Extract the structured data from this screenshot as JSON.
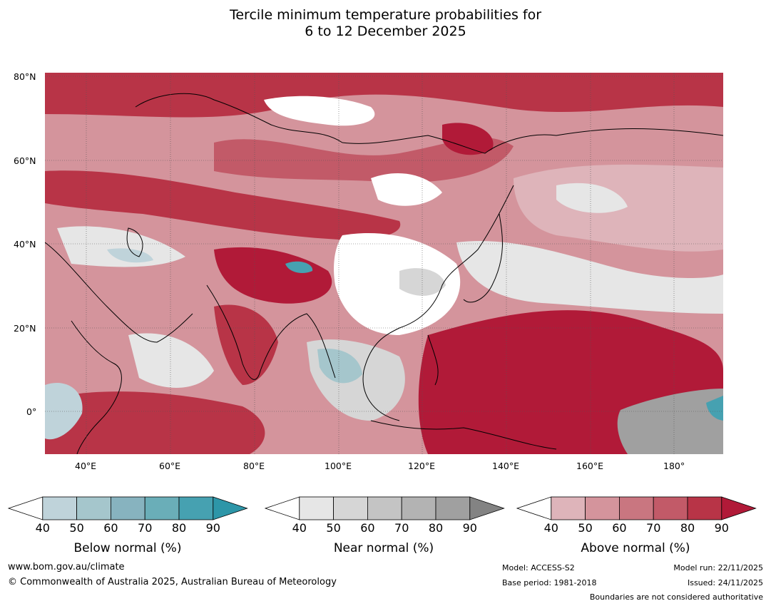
{
  "title_line1": "Tercile minimum temperature probabilities for",
  "title_line2": "6 to 12 December 2025",
  "lat_labels": [
    "80°N",
    "60°N",
    "40°N",
    "20°N",
    "0°"
  ],
  "lon_labels": [
    "40°E",
    "60°E",
    "80°E",
    "100°E",
    "120°E",
    "140°E",
    "160°E",
    "180°"
  ],
  "colorbars": [
    {
      "caption": "Below normal (%)",
      "ticks": [
        "40",
        "50",
        "60",
        "70",
        "80",
        "90"
      ],
      "colors": [
        "#ffffff",
        "#bfd3da",
        "#a5c6cc",
        "#87b3bf",
        "#6aaeb8",
        "#46a1b1",
        "#2d96a8"
      ]
    },
    {
      "caption": "Near normal (%)",
      "ticks": [
        "40",
        "50",
        "60",
        "70",
        "80",
        "90"
      ],
      "colors": [
        "#ffffff",
        "#e6e6e6",
        "#d6d6d6",
        "#c4c4c4",
        "#b3b3b3",
        "#a0a0a0",
        "#838383"
      ]
    },
    {
      "caption": "Above normal (%)",
      "ticks": [
        "40",
        "50",
        "60",
        "70",
        "80",
        "90"
      ],
      "colors": [
        "#ffffff",
        "#deb4ba",
        "#d4949c",
        "#c97680",
        "#c25a68",
        "#b83447",
        "#b11a38"
      ]
    }
  ],
  "footer": {
    "website": "www.bom.gov.au/climate",
    "copyright": "© Commonwealth of Australia 2025, Australian Bureau of Meteorology",
    "model": "Model: ACCESS-S2",
    "base_period": "Base period: 1981-2018",
    "model_run": "Model run: 22/11/2025",
    "issued": "Issued: 24/11/2025",
    "disclaimer": "Boundaries are not considered authoritative"
  },
  "map": {
    "lon_range": [
      30,
      191
    ],
    "lat_range": [
      -10,
      81
    ],
    "base_color": "#d4949c"
  }
}
